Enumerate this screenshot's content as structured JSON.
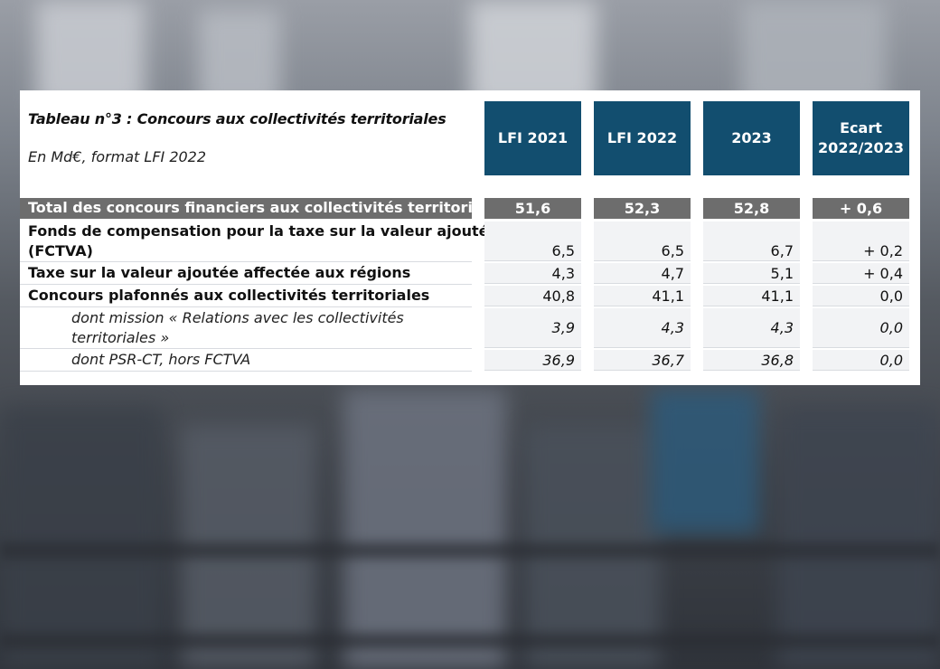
{
  "table": {
    "title": "Tableau n°3 : Concours aux collectivités territoriales",
    "subtitle": "En Md€, format LFI 2022",
    "headers": [
      "LFI 2021",
      "LFI 2022",
      "2023",
      "Ecart\n2022/2023"
    ],
    "header_4_line1": "Ecart",
    "header_4_line2": "2022/2023",
    "rows": [
      {
        "label": "Total des concours financiers aux collectivités territoriales",
        "values": [
          "51,6",
          "52,3",
          "52,8",
          "+ 0,6"
        ]
      },
      {
        "label_line1": "Fonds de compensation pour la taxe sur la valeur ajoutée",
        "label_line2": "(FCTVA)",
        "values": [
          "6,5",
          "6,5",
          "6,7",
          "+ 0,2"
        ]
      },
      {
        "label": "Taxe sur la valeur ajoutée affectée aux régions",
        "values": [
          "4,3",
          "4,7",
          "5,1",
          "+ 0,4"
        ]
      },
      {
        "label": "Concours plafonnés aux collectivités territoriales",
        "values": [
          "40,8",
          "41,1",
          "41,1",
          "0,0"
        ]
      },
      {
        "label_line1": "dont mission « Relations avec les collectivités",
        "label_line2": "territoriales »",
        "values": [
          "3,9",
          "4,3",
          "4,3",
          "0,0"
        ]
      },
      {
        "label": "dont PSR-CT, hors FCTVA",
        "values": [
          "36,9",
          "36,7",
          "36,8",
          "0,0"
        ]
      }
    ]
  },
  "colors": {
    "header_bg": "#124e6f",
    "total_row_bg": "#6d6d6d",
    "cell_bg": "#f2f3f5"
  }
}
